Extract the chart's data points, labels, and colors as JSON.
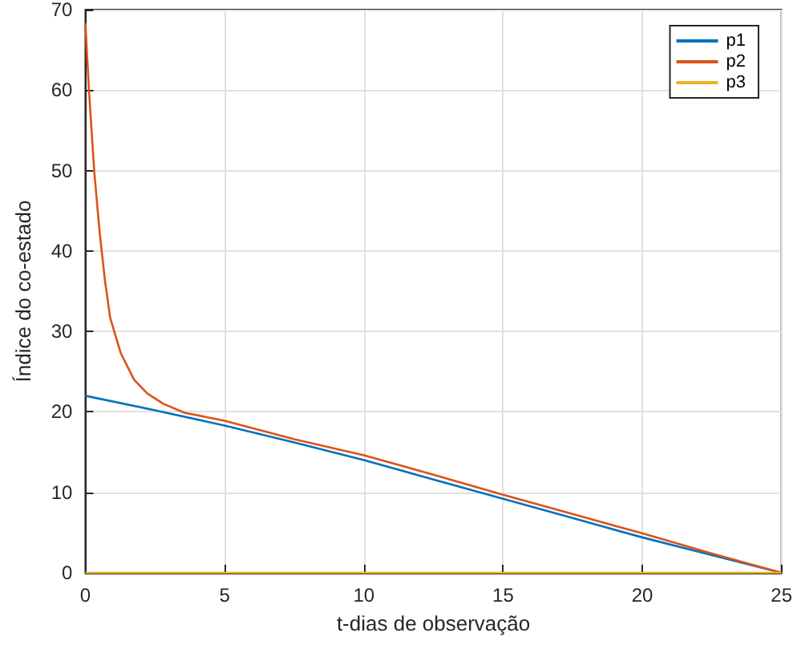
{
  "chart_data": {
    "type": "line",
    "xlabel": "t-dias de observação",
    "ylabel": "Índice do co-estado",
    "xlim": [
      0,
      25
    ],
    "xticks": [
      0,
      5,
      10,
      15,
      20,
      25
    ],
    "ylim": [
      0,
      70
    ],
    "yticks": [
      0,
      10,
      20,
      30,
      40,
      50,
      60,
      70
    ],
    "grid": true,
    "legend": "top right",
    "marker": "none",
    "line_style": "solid",
    "series": [
      {
        "name": "p1",
        "color": "#0072bd",
        "x": [
          0,
          2.5,
          5,
          7.5,
          10,
          12.5,
          15,
          17.5,
          20,
          22.5,
          25
        ],
        "values": [
          22,
          20.2,
          18.3,
          16.2,
          14,
          11.6,
          9.2,
          6.8,
          4.4,
          2.2,
          0
        ]
      },
      {
        "name": "p2",
        "color": "#d95319",
        "x": [
          0,
          0.13,
          0.32,
          0.51,
          0.7,
          0.89,
          1.27,
          1.75,
          2.22,
          2.8,
          3.56,
          5,
          7.5,
          10,
          12.5,
          15,
          17.5,
          20,
          22.5,
          25
        ],
        "values": [
          68.3,
          59.9,
          49.8,
          42.4,
          36.4,
          31.7,
          27.3,
          24,
          22.3,
          21,
          19.9,
          18.9,
          16.6,
          14.6,
          12.2,
          9.7,
          7.3,
          4.9,
          2.4,
          0
        ]
      },
      {
        "name": "p3",
        "color": "#edb120",
        "x": [
          0,
          25
        ],
        "values": [
          0,
          0
        ]
      }
    ]
  }
}
